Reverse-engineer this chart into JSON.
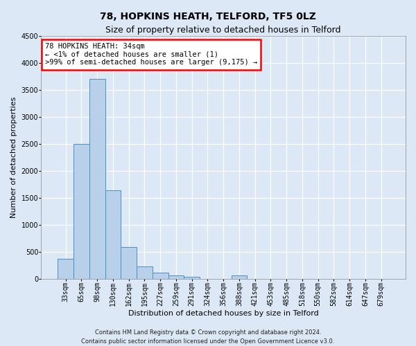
{
  "title": "78, HOPKINS HEATH, TELFORD, TF5 0LZ",
  "subtitle": "Size of property relative to detached houses in Telford",
  "xlabel": "Distribution of detached houses by size in Telford",
  "ylabel": "Number of detached properties",
  "categories": [
    "33sqm",
    "65sqm",
    "98sqm",
    "130sqm",
    "162sqm",
    "195sqm",
    "227sqm",
    "259sqm",
    "291sqm",
    "324sqm",
    "356sqm",
    "388sqm",
    "421sqm",
    "453sqm",
    "485sqm",
    "518sqm",
    "550sqm",
    "582sqm",
    "614sqm",
    "647sqm",
    "679sqm"
  ],
  "values": [
    360,
    2500,
    3700,
    1630,
    590,
    220,
    105,
    60,
    35,
    0,
    0,
    60,
    0,
    0,
    0,
    0,
    0,
    0,
    0,
    0,
    0
  ],
  "bar_color": "#b8d0ea",
  "bar_edge_color": "#4a90c4",
  "ylim": [
    0,
    4500
  ],
  "yticks": [
    0,
    500,
    1000,
    1500,
    2000,
    2500,
    3000,
    3500,
    4000,
    4500
  ],
  "annotation_line1": "78 HOPKINS HEATH: 34sqm",
  "annotation_line2": "← <1% of detached houses are smaller (1)",
  "annotation_line3": ">99% of semi-detached houses are larger (9,175) →",
  "footnote": "Contains HM Land Registry data © Crown copyright and database right 2024.\nContains public sector information licensed under the Open Government Licence v3.0.",
  "background_color": "#dce8f5",
  "grid_color": "#ffffff",
  "title_fontsize": 10,
  "subtitle_fontsize": 9,
  "axis_label_fontsize": 8,
  "tick_fontsize": 7,
  "annotation_fontsize": 7.5,
  "footnote_fontsize": 6
}
